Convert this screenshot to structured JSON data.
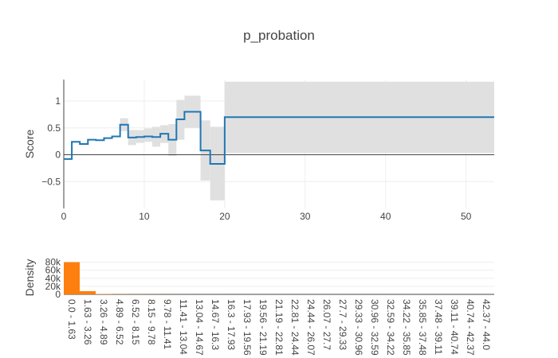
{
  "title": "p_probation",
  "chart_data": [
    {
      "type": "line",
      "subtype": "step",
      "ylabel": "Score",
      "xlabel": "",
      "xlim": [
        0,
        53.5
      ],
      "ylim": [
        -1.0,
        1.4
      ],
      "x_ticks": [
        0,
        10,
        20,
        30,
        40,
        50
      ],
      "y_ticks": [
        -0.5,
        0,
        0.5,
        1
      ],
      "y_tick_labels": [
        "−0.5",
        "0",
        "0.5",
        "1"
      ],
      "grid": true,
      "zero_line": true,
      "colors": {
        "line": "#1f77b4",
        "band": "#e0e0e0"
      },
      "steps": [
        {
          "x0": 0,
          "x1": 1.0,
          "y": -0.08,
          "lo": -0.08,
          "hi": -0.08
        },
        {
          "x0": 1.0,
          "x1": 2.0,
          "y": 0.24,
          "lo": 0.24,
          "hi": 0.24
        },
        {
          "x0": 2.0,
          "x1": 3.0,
          "y": 0.2,
          "lo": 0.2,
          "hi": 0.2
        },
        {
          "x0": 3.0,
          "x1": 4.0,
          "y": 0.28,
          "lo": 0.28,
          "hi": 0.28
        },
        {
          "x0": 4.0,
          "x1": 5.0,
          "y": 0.27,
          "lo": 0.27,
          "hi": 0.27
        },
        {
          "x0": 5.0,
          "x1": 6.0,
          "y": 0.31,
          "lo": 0.31,
          "hi": 0.31
        },
        {
          "x0": 6.0,
          "x1": 7.0,
          "y": 0.34,
          "lo": 0.34,
          "hi": 0.34
        },
        {
          "x0": 7.0,
          "x1": 8.0,
          "y": 0.56,
          "lo": 0.44,
          "hi": 0.68
        },
        {
          "x0": 8.0,
          "x1": 9.0,
          "y": 0.32,
          "lo": 0.18,
          "hi": 0.46
        },
        {
          "x0": 9.0,
          "x1": 10.0,
          "y": 0.33,
          "lo": 0.22,
          "hi": 0.46
        },
        {
          "x0": 10.0,
          "x1": 11.0,
          "y": 0.34,
          "lo": 0.24,
          "hi": 0.49
        },
        {
          "x0": 11.0,
          "x1": 12.0,
          "y": 0.33,
          "lo": 0.15,
          "hi": 0.52
        },
        {
          "x0": 12.0,
          "x1": 13.0,
          "y": 0.39,
          "lo": 0.22,
          "hi": 0.55
        },
        {
          "x0": 13.0,
          "x1": 14.0,
          "y": 0.28,
          "lo": -0.02,
          "hi": 0.57
        },
        {
          "x0": 14.0,
          "x1": 15.0,
          "y": 0.66,
          "lo": 0.28,
          "hi": 1.02
        },
        {
          "x0": 15.0,
          "x1": 17.0,
          "y": 0.8,
          "lo": 0.5,
          "hi": 1.1
        },
        {
          "x0": 17.0,
          "x1": 18.2,
          "y": 0.08,
          "lo": -0.48,
          "hi": 0.64
        },
        {
          "x0": 18.2,
          "x1": 20.0,
          "y": -0.17,
          "lo": -0.85,
          "hi": 0.52
        },
        {
          "x0": 20.0,
          "x1": 53.5,
          "y": 0.7,
          "lo": 0.03,
          "hi": 1.36
        }
      ]
    },
    {
      "type": "bar",
      "ylabel": "Density",
      "ylim": [
        0,
        85000
      ],
      "y_ticks": [
        0,
        20000,
        40000,
        60000,
        80000
      ],
      "y_tick_labels": [
        "0",
        "20k",
        "40k",
        "60k",
        "80k"
      ],
      "colors": {
        "bar": "#ff7f0e"
      },
      "categories": [
        "0.0 - 1.63",
        "1.63 - 3.26",
        "3.26 - 4.89",
        "4.89 - 6.52",
        "6.52 - 8.15",
        "8.15 - 9.78",
        "9.78 - 11.41",
        "11.41 - 13.04",
        "13.04 - 14.67",
        "14.67 - 16.3",
        "16.3 - 17.93",
        "17.93 - 19.56",
        "19.56 - 21.19",
        "21.19 - 22.81",
        "22.81 - 24.44",
        "24.44 - 26.07",
        "26.07 - 27.7",
        "27.7 - 29.33",
        "29.33 - 30.96",
        "30.96 - 32.59",
        "32.59 - 34.22",
        "34.22 - 35.85",
        "35.85 - 37.48",
        "37.48 - 39.11",
        "39.11 - 40.74",
        "40.74 - 42.37",
        "42.37 - 44.0"
      ],
      "values": [
        80000,
        8000,
        1000,
        500,
        300,
        200,
        150,
        100,
        80,
        60,
        50,
        40,
        30,
        25,
        20,
        15,
        12,
        10,
        8,
        6,
        5,
        4,
        3,
        2,
        2,
        1,
        1
      ]
    }
  ]
}
